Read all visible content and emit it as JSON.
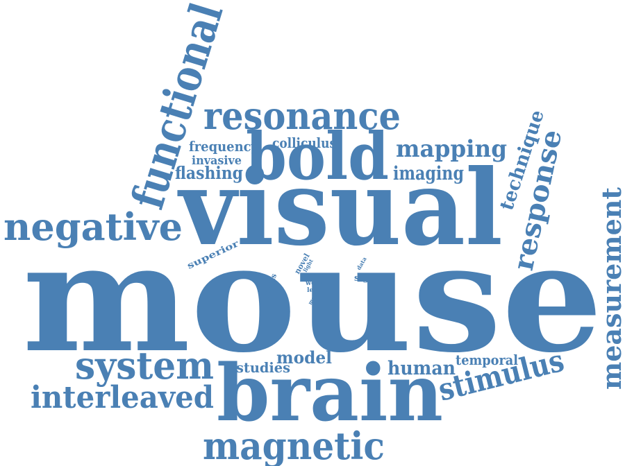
{
  "style": {
    "word_color": "#4a80b4",
    "background": "#ffffff"
  },
  "words": {
    "mouse": "mouse",
    "visual": "visual",
    "brain": "brain",
    "bold": "bold",
    "functional": "functional",
    "resonance": "resonance",
    "negative": "negative",
    "system": "system",
    "magnetic": "magnetic",
    "interleaved": "interleaved",
    "stimulus": "stimulus",
    "measurement": "measurement",
    "response": "response",
    "mapping": "mapping",
    "technique": "technique",
    "imaging": "imaging",
    "flashing": "flashing",
    "frequency": "frequency",
    "colliculus": "colliculus",
    "invasive": "invasive",
    "human": "human",
    "temporal": "temporal",
    "model": "model",
    "studies": "studies",
    "superior": "superior",
    "signal": "signal",
    "thesis": "thesis",
    "novel": "novel",
    "light": "light",
    "task": "task",
    "work": "work",
    "level": "level",
    "most": "most",
    "data": "data"
  }
}
